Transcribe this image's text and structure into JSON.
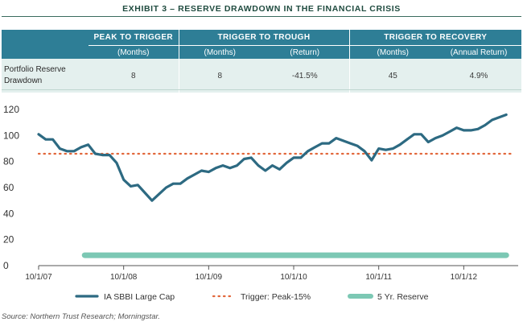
{
  "title": "EXHIBIT 3 – RESERVE DRAWDOWN IN THE FINANCIAL CRISIS",
  "table": {
    "groups": [
      "PEAK TO TRIGGER",
      "TRIGGER TO TROUGH",
      "TRIGGER TO RECOVERY"
    ],
    "subheaders": [
      "(Months)",
      "(Months)",
      "(Return)",
      "(Months)",
      "(Annual Return)"
    ],
    "row_label": "Portfolio Reserve Drawdown",
    "values": [
      "8",
      "8",
      "-41.5%",
      "45",
      "4.9%"
    ]
  },
  "colors": {
    "series": "#2d6a82",
    "trigger": "#e2683c",
    "reserve": "#7cc8b4",
    "header": "#2e7e96"
  },
  "source": "Source: Northern Trust Research; Morningstar.",
  "chart_data": {
    "type": "line",
    "xlabel": "",
    "ylabel": "",
    "x_tick_labels": [
      "10/1/07",
      "10/1/08",
      "10/1/09",
      "10/1/10",
      "10/1/11",
      "10/1/12"
    ],
    "y_ticks": [
      "0",
      "20",
      "40",
      "60",
      "80",
      "100",
      "120"
    ],
    "ylim": [
      0,
      125
    ],
    "xlim": [
      0,
      67
    ],
    "grid": false,
    "legend_position": "bottom",
    "series": [
      {
        "name": "IA SBBI Large Cap",
        "style": "solid",
        "x": [
          0,
          1,
          2,
          3,
          4,
          5,
          6,
          7,
          8,
          9,
          10,
          11,
          12,
          13,
          14,
          15,
          16,
          17,
          18,
          19,
          20,
          21,
          22,
          23,
          24,
          25,
          26,
          27,
          28,
          29,
          30,
          31,
          32,
          33,
          34,
          35,
          36,
          37,
          38,
          39,
          40,
          41,
          42,
          43,
          44,
          45,
          46,
          47,
          48,
          49,
          50,
          51,
          52,
          53,
          54,
          55,
          56,
          57,
          58,
          59,
          60,
          61,
          62,
          63,
          64,
          65,
          66
        ],
        "y": [
          101,
          97,
          97,
          90,
          88,
          88,
          91,
          93,
          86,
          85,
          85,
          79,
          66,
          61,
          62,
          56,
          50,
          55,
          60,
          63,
          63,
          67,
          70,
          73,
          72,
          75,
          77,
          75,
          77,
          82,
          83,
          77,
          73,
          77,
          74,
          79,
          83,
          83,
          88,
          91,
          94,
          94,
          98,
          96,
          94,
          92,
          88,
          81,
          90,
          89,
          90,
          93,
          97,
          101,
          101,
          95,
          98,
          100,
          103,
          106,
          104,
          104,
          105,
          108,
          112,
          114,
          116
        ]
      },
      {
        "name": "Trigger: Peak-15%",
        "style": "dotted",
        "x": [
          0,
          67
        ],
        "y": [
          86,
          86
        ]
      },
      {
        "name": "5 Yr. Reserve",
        "style": "thick",
        "x": [
          6.5,
          66
        ],
        "y": [
          8,
          8
        ]
      }
    ]
  }
}
